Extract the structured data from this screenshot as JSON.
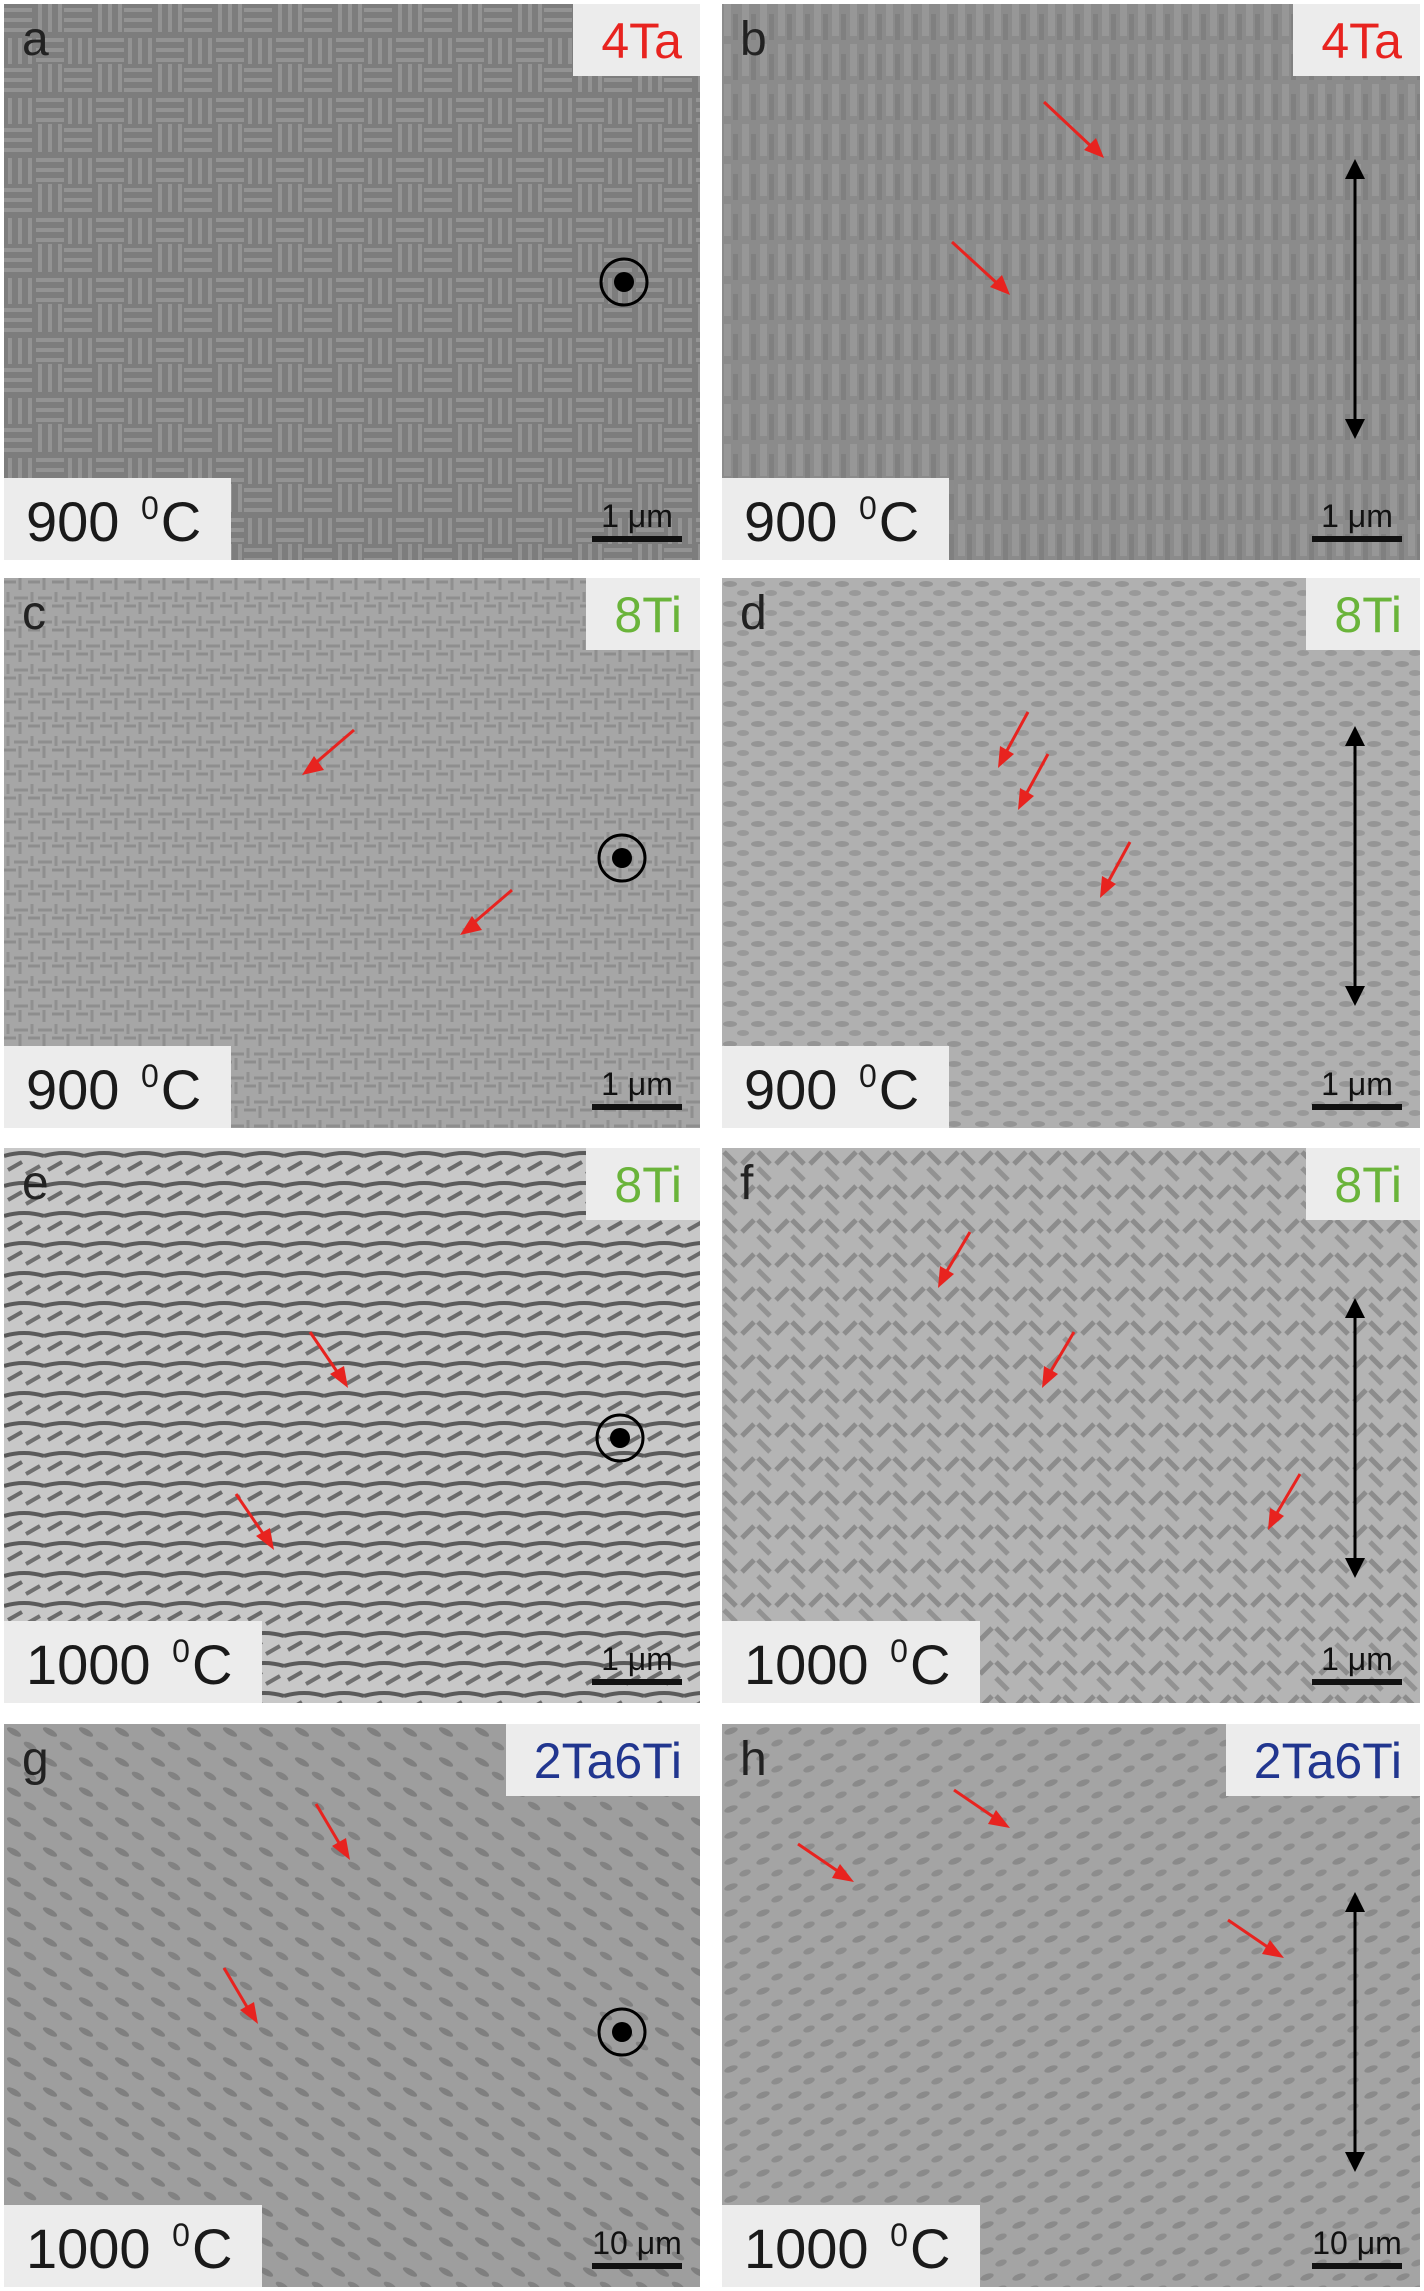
{
  "panels": [
    {
      "letter": "a",
      "composition": "4Ta",
      "temperature": "900",
      "unit": "C",
      "superscript": "0",
      "scale": "1 μm",
      "tag_color": "#e8231f",
      "direction_icon": "out-of-plane-dot-icon"
    },
    {
      "letter": "b",
      "composition": "4Ta",
      "temperature": "900",
      "unit": "C",
      "superscript": "0",
      "scale": "1 μm",
      "tag_color": "#e8231f",
      "direction_icon": "double-arrow-icon"
    },
    {
      "letter": "c",
      "composition": "8Ti",
      "temperature": "900",
      "unit": "C",
      "superscript": "0",
      "scale": "1 μm",
      "tag_color": "#6ab43a",
      "direction_icon": "out-of-plane-dot-icon"
    },
    {
      "letter": "d",
      "composition": "8Ti",
      "temperature": "900",
      "unit": "C",
      "superscript": "0",
      "scale": "1 μm",
      "tag_color": "#6ab43a",
      "direction_icon": "double-arrow-icon"
    },
    {
      "letter": "e",
      "composition": "8Ti",
      "temperature": "1000",
      "unit": "C",
      "superscript": "0",
      "scale": "1 μm",
      "tag_color": "#6ab43a",
      "direction_icon": "out-of-plane-dot-icon"
    },
    {
      "letter": "f",
      "composition": "8Ti",
      "temperature": "1000",
      "unit": "C",
      "superscript": "0",
      "scale": "1 μm",
      "tag_color": "#6ab43a",
      "direction_icon": "double-arrow-icon"
    },
    {
      "letter": "g",
      "composition": "2Ta6Ti",
      "temperature": "1000",
      "unit": "C",
      "superscript": "0",
      "scale": "10 μm",
      "tag_color": "#21368f",
      "direction_icon": "out-of-plane-dot-icon"
    },
    {
      "letter": "h",
      "composition": "2Ta6Ti",
      "temperature": "1000",
      "unit": "C",
      "superscript": "0",
      "scale": "10 μm",
      "tag_color": "#21368f",
      "direction_icon": "double-arrow-icon"
    }
  ],
  "colors": {
    "annotation_arrow": "#e8231f",
    "label_box": "#ececec"
  }
}
